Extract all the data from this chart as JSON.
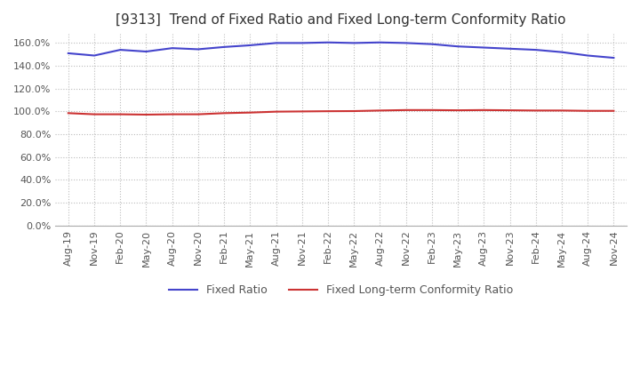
{
  "title": "[9313]  Trend of Fixed Ratio and Fixed Long-term Conformity Ratio",
  "ylim": [
    0.0,
    168.0
  ],
  "yticks": [
    0.0,
    20.0,
    40.0,
    60.0,
    80.0,
    100.0,
    120.0,
    140.0,
    160.0
  ],
  "background_color": "#ffffff",
  "grid_color": "#bbbbbb",
  "fixed_ratio_color": "#4444cc",
  "fixed_lt_color": "#cc3333",
  "fixed_ratio_label": "Fixed Ratio",
  "fixed_lt_label": "Fixed Long-term Conformity Ratio",
  "x_labels": [
    "Aug-19",
    "Nov-19",
    "Feb-20",
    "May-20",
    "Aug-20",
    "Nov-20",
    "Feb-21",
    "May-21",
    "Aug-21",
    "Nov-21",
    "Feb-22",
    "May-22",
    "Aug-22",
    "Nov-22",
    "Feb-23",
    "May-23",
    "Aug-23",
    "Nov-23",
    "Feb-24",
    "May-24",
    "Aug-24",
    "Nov-24"
  ],
  "fixed_ratio_values": [
    151.0,
    149.0,
    154.0,
    152.5,
    155.5,
    154.5,
    156.5,
    158.0,
    160.0,
    160.0,
    160.5,
    160.0,
    160.5,
    160.0,
    159.0,
    157.0,
    156.0,
    155.0,
    154.0,
    152.0,
    149.0,
    147.0
  ],
  "fixed_lt_values": [
    98.5,
    97.5,
    97.5,
    97.2,
    97.5,
    97.5,
    98.5,
    99.0,
    99.8,
    100.0,
    100.2,
    100.3,
    100.8,
    101.2,
    101.2,
    101.0,
    101.2,
    101.0,
    100.8,
    100.8,
    100.5,
    100.5
  ]
}
